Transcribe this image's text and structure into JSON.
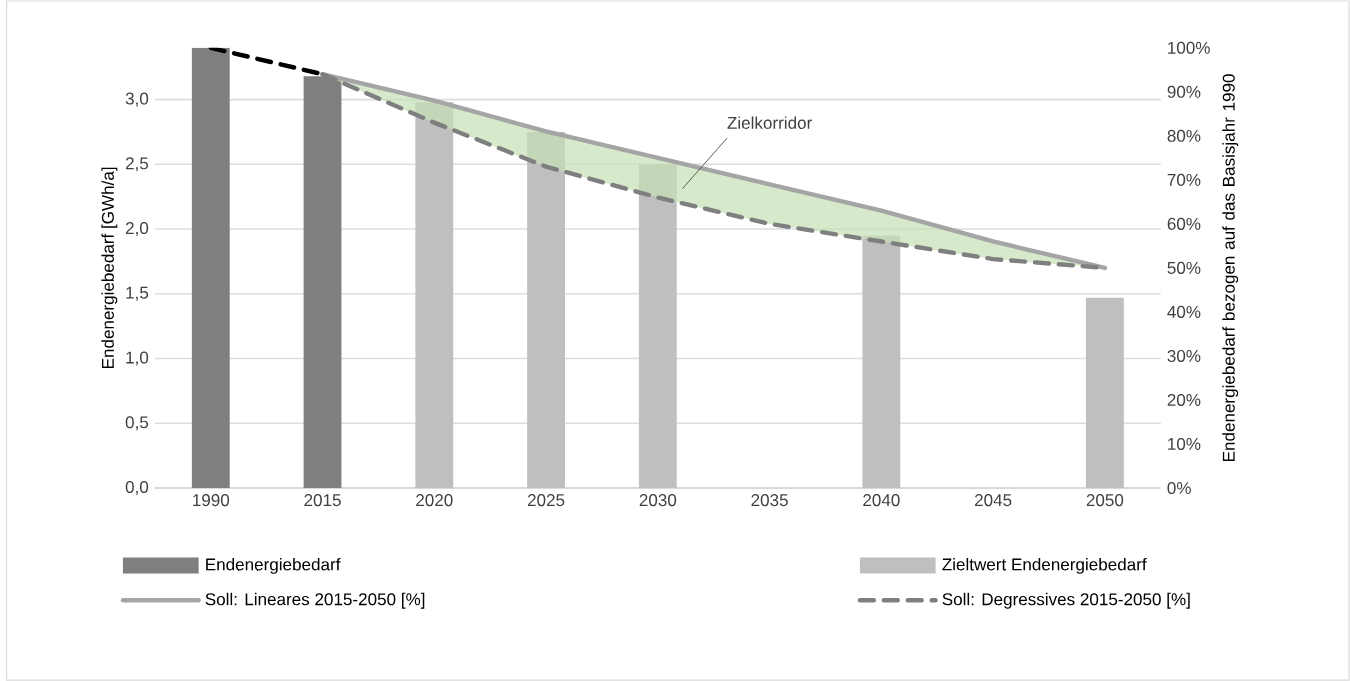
{
  "chart_data": {
    "type": "bar",
    "categories": [
      "1990",
      "2015",
      "2020",
      "2025",
      "2030",
      "2035",
      "2040",
      "2045",
      "2050"
    ],
    "ylabel": "Endenergiebedarf [GWh/a]",
    "y2label": "Endenergiebedarf bezogen auf das Basisjahr 1990",
    "ylim": [
      0,
      3.4
    ],
    "yticks": [
      {
        "value": 0,
        "label": "0,0"
      },
      {
        "value": 0.5,
        "label": "0,5"
      },
      {
        "value": 1,
        "label": "1,0"
      },
      {
        "value": 1.5,
        "label": "1,5"
      },
      {
        "value": 2,
        "label": "2,0"
      },
      {
        "value": 2.5,
        "label": "2,5"
      },
      {
        "value": 3,
        "label": "3,0"
      }
    ],
    "y2lim": [
      0,
      100
    ],
    "y2ticks": [
      {
        "value": 0,
        "label": "0%"
      },
      {
        "value": 10,
        "label": "10%"
      },
      {
        "value": 20,
        "label": "20%"
      },
      {
        "value": 30,
        "label": "30%"
      },
      {
        "value": 40,
        "label": "40%"
      },
      {
        "value": 50,
        "label": "50%"
      },
      {
        "value": 60,
        "label": "60%"
      },
      {
        "value": 70,
        "label": "70%"
      },
      {
        "value": 80,
        "label": "80%"
      },
      {
        "value": 90,
        "label": "90%"
      },
      {
        "value": 100,
        "label": "100%"
      }
    ],
    "grid": "y",
    "legend": "bottom",
    "annotations": [
      "Zielkorridor"
    ],
    "series": [
      {
        "name": "Endenergiebedarf",
        "color": "#7f7f7f",
        "values": [
          3.4,
          3.18,
          null,
          null,
          null,
          null,
          null,
          null,
          null
        ]
      },
      {
        "name": "Zieltwert Endenergiebedarf",
        "color": "#bfbfbf",
        "values": [
          null,
          null,
          2.98,
          2.75,
          2.5,
          null,
          1.95,
          null,
          1.47
        ]
      },
      {
        "name": "Soll: Lineares  2015-2050 [%]",
        "type": "line",
        "axis": "y2",
        "color": "#a5a5a5",
        "line_style": "solid",
        "values": [
          null,
          94,
          88,
          81,
          75,
          69,
          63,
          56,
          50
        ],
        "lower": [
          null,
          94,
          83,
          73,
          66,
          60,
          56,
          52,
          50
        ],
        "upper": [
          null,
          94,
          88,
          81,
          75,
          69,
          63,
          56,
          50
        ]
      },
      {
        "name": "Soll: Degressives  2015-2050 [%]",
        "type": "line",
        "axis": "y2",
        "color": "#7f7f7f",
        "line_style": "dashed",
        "values": [
          null,
          94,
          83,
          73,
          66,
          60,
          56,
          52,
          50
        ]
      },
      {
        "type": "line",
        "axis": "y2",
        "color": "#000000",
        "line_style": "dashed",
        "values": [
          100,
          94,
          null,
          null,
          null,
          null,
          null,
          null,
          null
        ]
      }
    ]
  }
}
